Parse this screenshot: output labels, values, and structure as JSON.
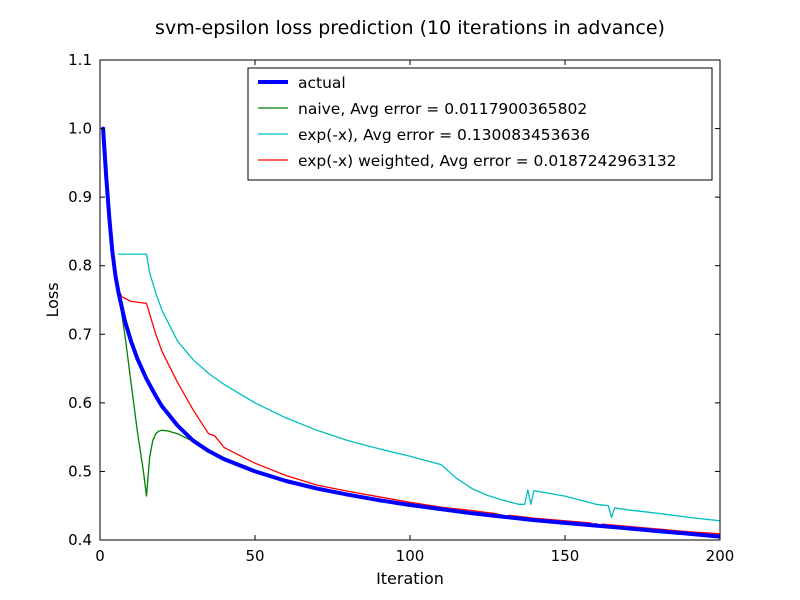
{
  "chart_data": {
    "type": "line",
    "title": "svm-epsilon loss prediction (10 iterations in advance)",
    "xlabel": "Iteration",
    "ylabel": "Loss",
    "xlim": [
      0,
      200
    ],
    "ylim": [
      0.4,
      1.1
    ],
    "xticks": [
      0,
      50,
      100,
      150,
      200
    ],
    "yticks": [
      0.4,
      0.5,
      0.6,
      0.7,
      0.8,
      0.9,
      1.0,
      1.1
    ],
    "xtick_labels": [
      "0",
      "50",
      "100",
      "150",
      "200"
    ],
    "ytick_labels": [
      "0.4",
      "0.5",
      "0.6",
      "0.7",
      "0.8",
      "0.9",
      "1.0",
      "1.1"
    ],
    "grid": false,
    "legend_position": "top-right",
    "series": [
      {
        "name": "actual",
        "color": "#0000ff",
        "x": [
          1,
          2,
          3,
          4,
          5,
          6,
          8,
          10,
          12,
          15,
          18,
          20,
          25,
          30,
          35,
          40,
          50,
          60,
          70,
          80,
          90,
          100,
          110,
          120,
          130,
          140,
          150,
          160,
          170,
          180,
          190,
          200
        ],
        "y": [
          1.0,
          0.93,
          0.87,
          0.82,
          0.785,
          0.76,
          0.72,
          0.69,
          0.665,
          0.635,
          0.61,
          0.595,
          0.567,
          0.545,
          0.53,
          0.518,
          0.5,
          0.486,
          0.475,
          0.466,
          0.458,
          0.451,
          0.445,
          0.439,
          0.434,
          0.429,
          0.425,
          0.421,
          0.417,
          0.413,
          0.409,
          0.405
        ]
      },
      {
        "name": "naive, Avg error = 0.0117900365802",
        "color": "#008000",
        "x": [
          6,
          8,
          10,
          12,
          14,
          15,
          16,
          17,
          18,
          19,
          20,
          22,
          25,
          30,
          35,
          40,
          50,
          60,
          70,
          80,
          90,
          100,
          110,
          120,
          130,
          140,
          150,
          160,
          170,
          180,
          190,
          200
        ],
        "y": [
          0.76,
          0.7,
          0.63,
          0.56,
          0.5,
          0.464,
          0.52,
          0.545,
          0.555,
          0.559,
          0.56,
          0.559,
          0.555,
          0.544,
          0.531,
          0.52,
          0.502,
          0.488,
          0.477,
          0.467,
          0.459,
          0.452,
          0.446,
          0.44,
          0.435,
          0.43,
          0.426,
          0.422,
          0.418,
          0.414,
          0.41,
          0.406
        ]
      },
      {
        "name": "exp(-x), Avg error = 0.130083453636",
        "color": "#00bfbf",
        "x": [
          6,
          10,
          15,
          16,
          18,
          20,
          25,
          30,
          35,
          40,
          50,
          60,
          70,
          80,
          90,
          100,
          110,
          115,
          120,
          125,
          130,
          135,
          137,
          138,
          139,
          140,
          145,
          150,
          160,
          164,
          165,
          166,
          170,
          180,
          190,
          200
        ],
        "y": [
          0.817,
          0.817,
          0.817,
          0.79,
          0.76,
          0.735,
          0.69,
          0.663,
          0.643,
          0.627,
          0.6,
          0.578,
          0.56,
          0.545,
          0.533,
          0.522,
          0.51,
          0.49,
          0.475,
          0.465,
          0.458,
          0.452,
          0.452,
          0.473,
          0.452,
          0.472,
          0.468,
          0.464,
          0.452,
          0.45,
          0.433,
          0.447,
          0.444,
          0.439,
          0.433,
          0.428
        ]
      },
      {
        "name": "exp(-x) weighted, Avg error = 0.0187242963132",
        "color": "#ff0000",
        "x": [
          6,
          7,
          10,
          15,
          16,
          18,
          20,
          25,
          30,
          35,
          37,
          40,
          50,
          60,
          70,
          80,
          90,
          100,
          110,
          120,
          125,
          127,
          128,
          130,
          131,
          132,
          140,
          150,
          158,
          159,
          160,
          161,
          162,
          170,
          180,
          190,
          200
        ],
        "y": [
          0.765,
          0.755,
          0.748,
          0.745,
          0.73,
          0.7,
          0.675,
          0.63,
          0.59,
          0.555,
          0.552,
          0.535,
          0.512,
          0.494,
          0.48,
          0.471,
          0.463,
          0.455,
          0.448,
          0.443,
          0.44,
          0.439,
          0.438,
          0.436,
          0.433,
          0.436,
          0.432,
          0.428,
          0.425,
          0.423,
          0.424,
          0.421,
          0.423,
          0.42,
          0.416,
          0.412,
          0.409
        ]
      }
    ]
  }
}
